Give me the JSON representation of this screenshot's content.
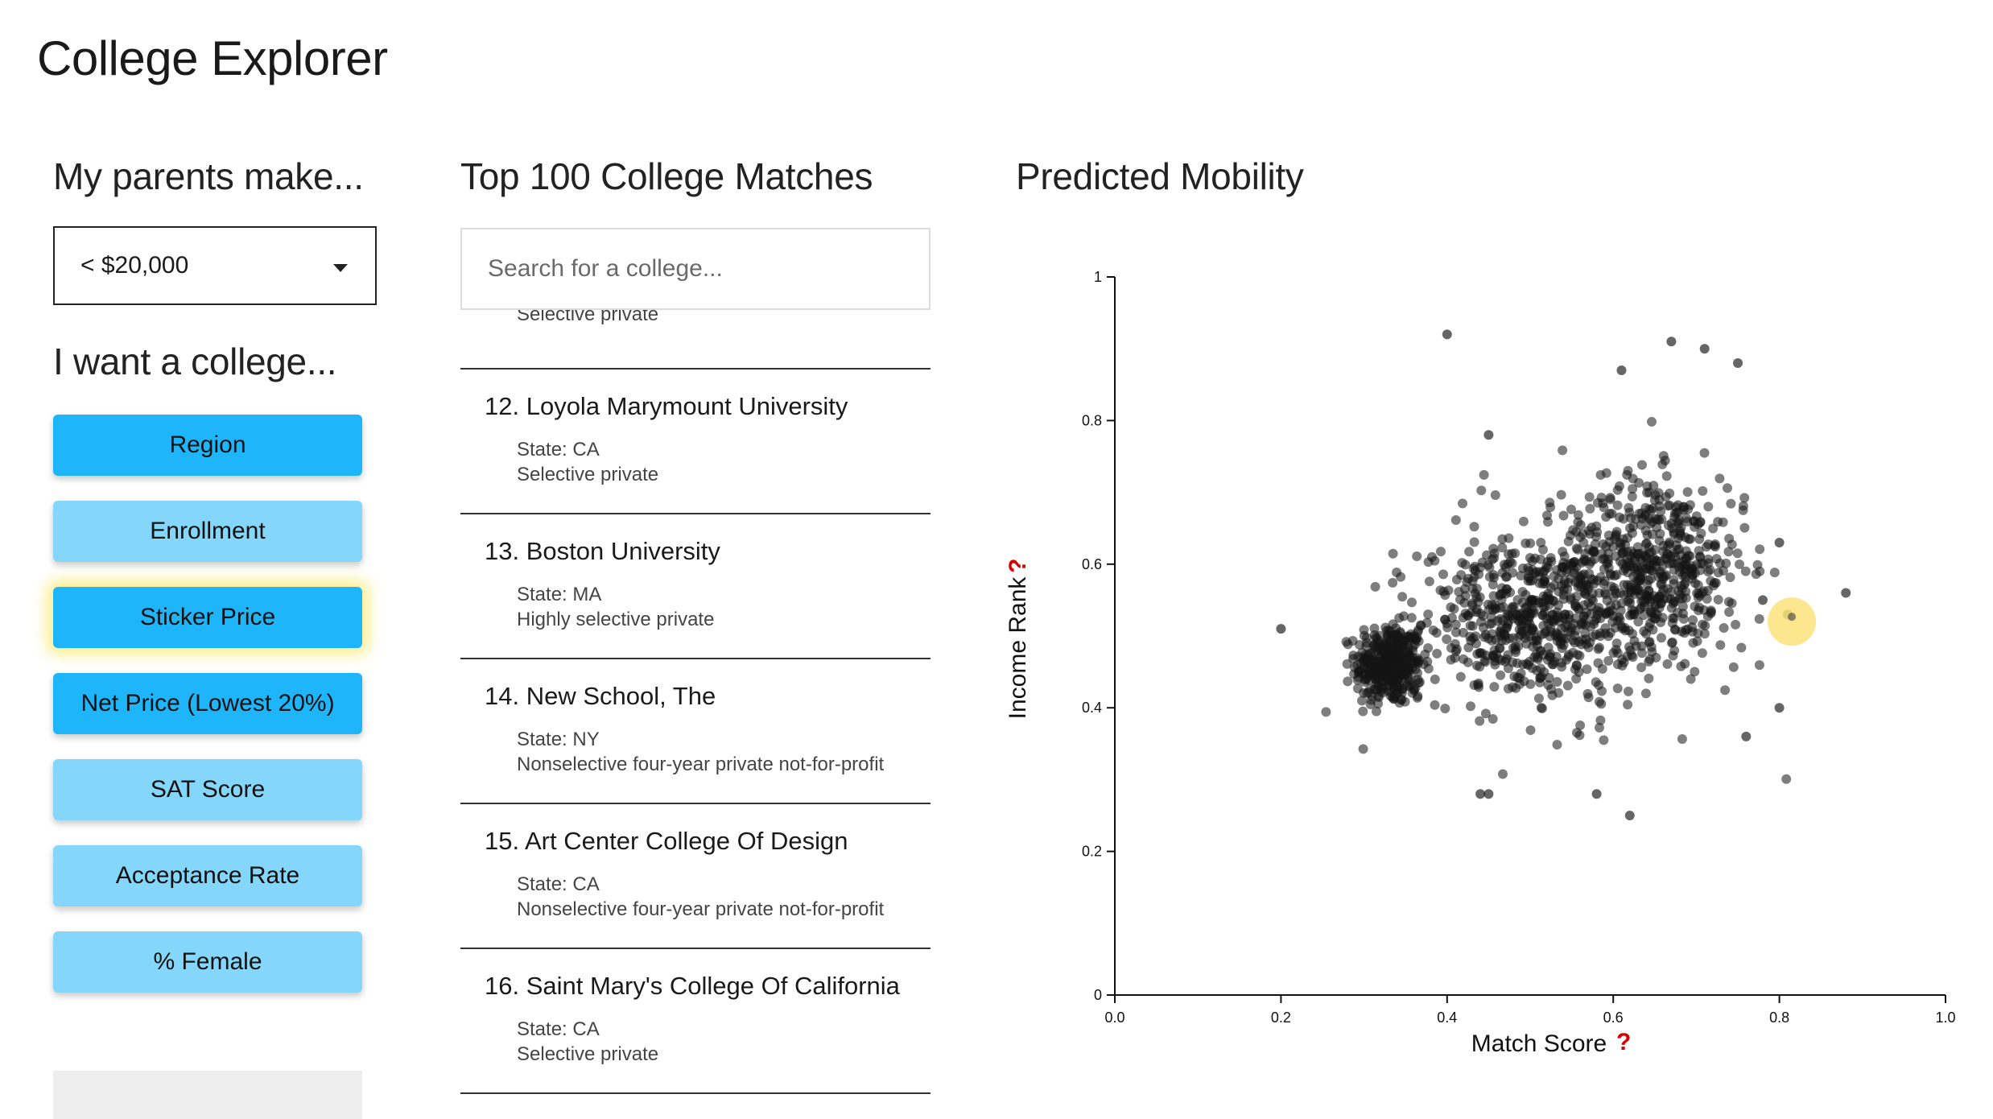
{
  "app": {
    "title": "College Explorer"
  },
  "income": {
    "heading": "My parents make...",
    "selected": "< $20,000"
  },
  "filters": {
    "heading": "I want a college...",
    "items": [
      {
        "label": "Region",
        "state": "active"
      },
      {
        "label": "Enrollment",
        "state": "inactive"
      },
      {
        "label": "Sticker Price",
        "state": "active-highlighted"
      },
      {
        "label": "Net Price (Lowest 20%)",
        "state": "active"
      },
      {
        "label": "SAT Score",
        "state": "inactive"
      },
      {
        "label": "Acceptance Rate",
        "state": "inactive"
      },
      {
        "label": "% Female",
        "state": "inactive"
      }
    ]
  },
  "matches": {
    "heading": "Top 100 College Matches",
    "search_placeholder": "Search for a college...",
    "partial_previous": "Selective private",
    "colleges": [
      {
        "name": "12. Loyola Marymount University",
        "state": "State: CA",
        "type": "Selective private"
      },
      {
        "name": "13. Boston University",
        "state": "State: MA",
        "type": "Highly selective private"
      },
      {
        "name": "14. New School, The",
        "state": "State: NY",
        "type": "Nonselective four-year private not-for-profit"
      },
      {
        "name": "15. Art Center College Of Design",
        "state": "State: CA",
        "type": "Nonselective four-year private not-for-profit"
      },
      {
        "name": "16. Saint Mary's College Of California",
        "state": "State: CA",
        "type": "Selective private"
      }
    ]
  },
  "mobility": {
    "heading": "Predicted Mobility"
  },
  "colors": {
    "active_button": "#1eb5fb",
    "inactive_button": "#84d6fb",
    "highlight": "#fbe37a",
    "help_mark": "#d40000"
  },
  "chart_data": {
    "type": "scatter",
    "xlabel": "Match Score",
    "ylabel": "Income Rank",
    "help_icon": "?",
    "xlim": [
      0,
      1
    ],
    "ylim": [
      0,
      1
    ],
    "xticks": [
      "0.0",
      "0.2",
      "0.4",
      "0.6",
      "0.8",
      "1.0"
    ],
    "yticks": [
      "0",
      "0.2",
      "0.4",
      "0.6",
      "0.8",
      "1"
    ],
    "grid": false,
    "highlighted_point": {
      "x": 0.815,
      "y": 0.52
    },
    "clusters": [
      {
        "cx": 0.33,
        "cy": 0.46,
        "sx": 0.02,
        "sy": 0.028,
        "n": 380
      },
      {
        "cx": 0.5,
        "cy": 0.52,
        "sx": 0.065,
        "sy": 0.055,
        "n": 520
      },
      {
        "cx": 0.65,
        "cy": 0.6,
        "sx": 0.055,
        "sy": 0.06,
        "n": 480
      },
      {
        "cx": 0.58,
        "cy": 0.56,
        "sx": 0.11,
        "sy": 0.09,
        "n": 160
      }
    ],
    "outliers": [
      [
        0.2,
        0.51
      ],
      [
        0.4,
        0.92
      ],
      [
        0.67,
        0.91
      ],
      [
        0.71,
        0.9
      ],
      [
        0.75,
        0.88
      ],
      [
        0.61,
        0.87
      ],
      [
        0.45,
        0.78
      ],
      [
        0.88,
        0.56
      ],
      [
        0.8,
        0.4
      ],
      [
        0.62,
        0.25
      ],
      [
        0.58,
        0.28
      ],
      [
        0.44,
        0.28
      ],
      [
        0.45,
        0.28
      ],
      [
        0.8,
        0.63
      ],
      [
        0.76,
        0.36
      ],
      [
        0.78,
        0.55
      ],
      [
        0.81,
        0.53
      ]
    ]
  }
}
